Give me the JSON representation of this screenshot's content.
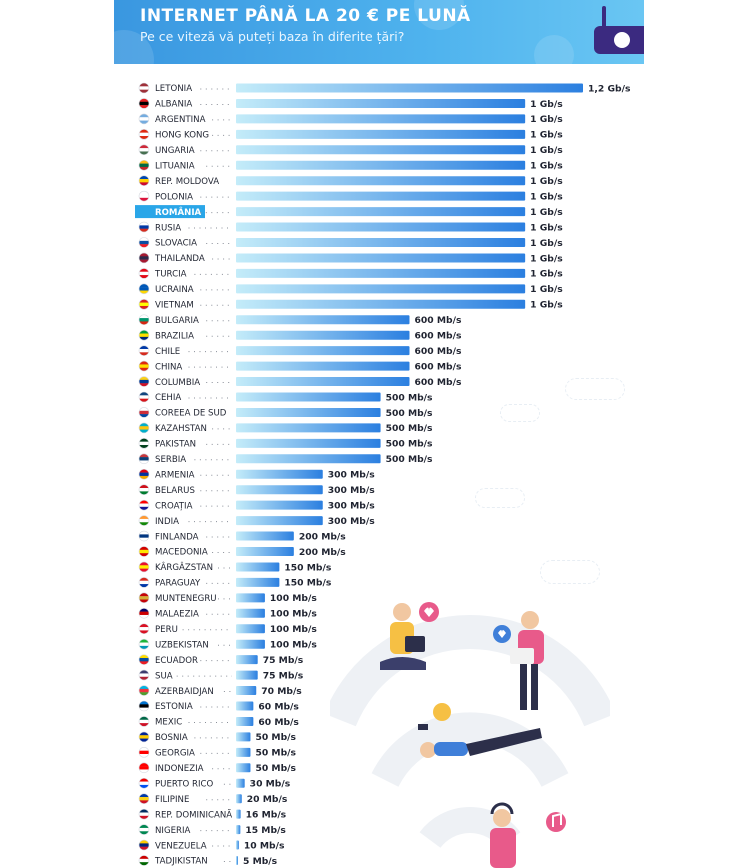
{
  "banner": {
    "title": "INTERNET PÂNĂ LA 20 € PE LUNĂ",
    "subtitle": "Pe ce viteză vă puteți baza în diferite țări?"
  },
  "highlight_category": "ROMÂNIA",
  "colors": {
    "bar_start": "#bfe9f8",
    "bar_end": "#2b7fe0",
    "highlight": "#2aa6e8",
    "banner": "#3a97e0"
  },
  "chart_data": {
    "type": "bar",
    "orientation": "horizontal",
    "unit": "Mb/s",
    "categories": [
      "LETONIA",
      "ALBANIA",
      "ARGENTINA",
      "HONG KONG",
      "UNGARIA",
      "LITUANIA",
      "REP. MOLDOVA",
      "POLONIA",
      "ROMÂNIA",
      "RUSIA",
      "SLOVACIA",
      "THAILANDA",
      "TURCIA",
      "UCRAINA",
      "VIETNAM",
      "BULGARIA",
      "BRAZILIA",
      "CHILE",
      "CHINA",
      "COLUMBIA",
      "CEHIA",
      "COREEA DE SUD",
      "KAZAHSTAN",
      "PAKISTAN",
      "SERBIA",
      "ARMENIA",
      "BELARUS",
      "CROAȚIA",
      "INDIA",
      "FINLANDA",
      "MACEDONIA",
      "KÂRGÂZSTAN",
      "PARAGUAY",
      "MUNTENEGRU",
      "MALAEZIA",
      "PERU",
      "UZBEKISTAN",
      "ECUADOR",
      "SUA",
      "AZERBAIDJAN",
      "ESTONIA",
      "MEXIC",
      "BOSNIA",
      "GEORGIA",
      "INDONEZIA",
      "PUERTO RICO",
      "FILIPINE",
      "REP. DOMINICANĂ",
      "NIGERIA",
      "VENEZUELA",
      "TADJIKISTAN"
    ],
    "values": [
      1200,
      1000,
      1000,
      1000,
      1000,
      1000,
      1000,
      1000,
      1000,
      1000,
      1000,
      1000,
      1000,
      1000,
      1000,
      600,
      600,
      600,
      600,
      600,
      500,
      500,
      500,
      500,
      500,
      300,
      300,
      300,
      300,
      200,
      200,
      150,
      150,
      100,
      100,
      100,
      100,
      75,
      75,
      70,
      60,
      60,
      50,
      50,
      50,
      30,
      20,
      16,
      15,
      10,
      5
    ],
    "value_labels": [
      "1,2 Gb/s",
      "1 Gb/s",
      "1 Gb/s",
      "1 Gb/s",
      "1 Gb/s",
      "1 Gb/s",
      "1 Gb/s",
      "1 Gb/s",
      "1 Gb/s",
      "1 Gb/s",
      "1 Gb/s",
      "1 Gb/s",
      "1 Gb/s",
      "1 Gb/s",
      "1 Gb/s",
      "600 Mb/s",
      "600 Mb/s",
      "600 Mb/s",
      "600 Mb/s",
      "600 Mb/s",
      "500 Mb/s",
      "500 Mb/s",
      "500 Mb/s",
      "500 Mb/s",
      "500 Mb/s",
      "300 Mb/s",
      "300 Mb/s",
      "300 Mb/s",
      "300 Mb/s",
      "200 Mb/s",
      "200 Mb/s",
      "150 Mb/s",
      "150 Mb/s",
      "100 Mb/s",
      "100 Mb/s",
      "100 Mb/s",
      "100 Mb/s",
      "75 Mb/s",
      "75 Mb/s",
      "70 Mb/s",
      "60 Mb/s",
      "60 Mb/s",
      "50 Mb/s",
      "50 Mb/s",
      "50 Mb/s",
      "30 Mb/s",
      "20 Mb/s",
      "16 Mb/s",
      "15 Mb/s",
      "10 Mb/s",
      "5 Mb/s"
    ],
    "flag_colors": [
      [
        "#9e3039",
        "#ffffff",
        "#9e3039"
      ],
      [
        "#e41e20",
        "#000000",
        "#e41e20"
      ],
      [
        "#74acdf",
        "#ffffff",
        "#74acdf"
      ],
      [
        "#de2910",
        "#ffffff",
        "#de2910"
      ],
      [
        "#ce2939",
        "#ffffff",
        "#477050"
      ],
      [
        "#fdb913",
        "#006a44",
        "#c1272d"
      ],
      [
        "#0046ae",
        "#ffd200",
        "#cc092f"
      ],
      [
        "#ffffff",
        "#ffffff",
        "#dc143c"
      ],
      [
        "#002b7f",
        "#fcd116",
        "#ce1126"
      ],
      [
        "#ffffff",
        "#0039a6",
        "#d52b1e"
      ],
      [
        "#ffffff",
        "#0b4ea2",
        "#ee1c25"
      ],
      [
        "#a51931",
        "#2d2a4a",
        "#a51931"
      ],
      [
        "#e30a17",
        "#ffffff",
        "#e30a17"
      ],
      [
        "#0057b7",
        "#0057b7",
        "#ffd700"
      ],
      [
        "#da251d",
        "#ffff00",
        "#da251d"
      ],
      [
        "#ffffff",
        "#00966e",
        "#d62612"
      ],
      [
        "#009c3b",
        "#ffdf00",
        "#002776"
      ],
      [
        "#0039a6",
        "#ffffff",
        "#d52b1e"
      ],
      [
        "#de2910",
        "#ffde00",
        "#de2910"
      ],
      [
        "#fcd116",
        "#003893",
        "#ce1126"
      ],
      [
        "#11457e",
        "#ffffff",
        "#d7141a"
      ],
      [
        "#ffffff",
        "#cd2e3a",
        "#0047a0"
      ],
      [
        "#00afca",
        "#fec50c",
        "#00afca"
      ],
      [
        "#01411c",
        "#ffffff",
        "#01411c"
      ],
      [
        "#c6363c",
        "#0c4076",
        "#ffffff"
      ],
      [
        "#d90012",
        "#0033a0",
        "#f2a800"
      ],
      [
        "#cf101a",
        "#ffffff",
        "#007c30"
      ],
      [
        "#ff0000",
        "#ffffff",
        "#171796"
      ],
      [
        "#ff9933",
        "#ffffff",
        "#138808"
      ],
      [
        "#ffffff",
        "#003580",
        "#ffffff"
      ],
      [
        "#d20000",
        "#ffe600",
        "#d20000"
      ],
      [
        "#e8112d",
        "#ffef00",
        "#e8112d"
      ],
      [
        "#d52b1e",
        "#ffffff",
        "#0038a8"
      ],
      [
        "#c40308",
        "#d4af3a",
        "#c40308"
      ],
      [
        "#010066",
        "#cc0001",
        "#ffffff"
      ],
      [
        "#d91023",
        "#ffffff",
        "#d91023"
      ],
      [
        "#1eb53a",
        "#ffffff",
        "#0099b5"
      ],
      [
        "#ffdd00",
        "#034ea2",
        "#ed1c24"
      ],
      [
        "#3c3b6e",
        "#ffffff",
        "#b22234"
      ],
      [
        "#00b5e2",
        "#ef3340",
        "#509e2f"
      ],
      [
        "#0072ce",
        "#000000",
        "#ffffff"
      ],
      [
        "#006847",
        "#ffffff",
        "#ce1126"
      ],
      [
        "#002395",
        "#fecb00",
        "#002395"
      ],
      [
        "#ffffff",
        "#ff0000",
        "#ffffff"
      ],
      [
        "#ff0000",
        "#ff0000",
        "#ffffff"
      ],
      [
        "#ed0000",
        "#ffffff",
        "#0050f0"
      ],
      [
        "#0038a8",
        "#fcd116",
        "#ce1126"
      ],
      [
        "#002d62",
        "#ffffff",
        "#ce1126"
      ],
      [
        "#008751",
        "#ffffff",
        "#008751"
      ],
      [
        "#ffcc00",
        "#00247d",
        "#cf142b"
      ],
      [
        "#cc0000",
        "#ffffff",
        "#006600"
      ]
    ],
    "xlim": [
      0,
      1200
    ],
    "title": "",
    "xlabel": "",
    "ylabel": ""
  }
}
